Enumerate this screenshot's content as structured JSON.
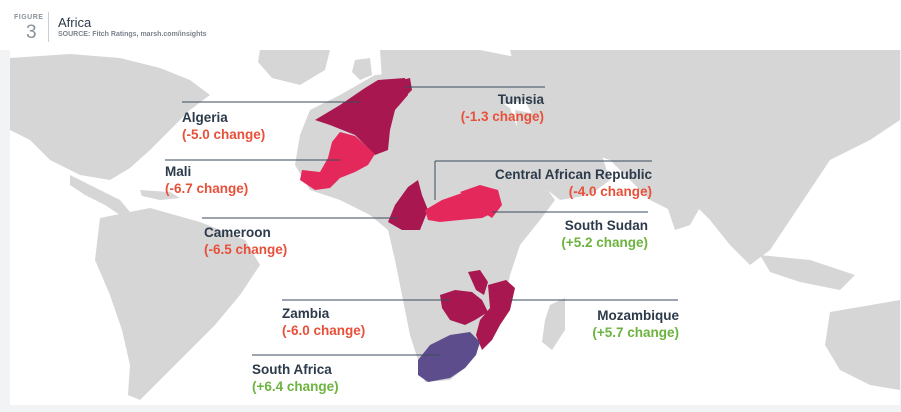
{
  "figure": {
    "label": "FIGURE",
    "number": "3"
  },
  "title": "Africa",
  "source": "SOURCE: Fitch Ratings, marsh.com/insights",
  "colors": {
    "land": "#d6d6d6",
    "highlight_dark": "#a8174f",
    "highlight_pink": "#e5285c",
    "highlight_purple": "#5d4d8c",
    "negative_text": "#e8503a",
    "positive_text": "#6cb33f",
    "leader_line": "#3a4b5e"
  },
  "countries": [
    {
      "key": "algeria",
      "name": "Algeria",
      "change": "(-5.0 change)",
      "direction": "negative"
    },
    {
      "key": "tunisia",
      "name": "Tunisia",
      "change": "(-1.3 change)",
      "direction": "negative"
    },
    {
      "key": "mali",
      "name": "Mali",
      "change": "(-6.7 change)",
      "direction": "negative"
    },
    {
      "key": "car",
      "name": "Central African Republic",
      "change": "(-4.0 change)",
      "direction": "negative"
    },
    {
      "key": "cameroon",
      "name": "Cameroon",
      "change": "(-6.5 change)",
      "direction": "negative"
    },
    {
      "key": "south_sudan",
      "name": "South Sudan",
      "change": "(+5.2 change)",
      "direction": "positive"
    },
    {
      "key": "zambia",
      "name": "Zambia",
      "change": "(-6.0 change)",
      "direction": "negative"
    },
    {
      "key": "mozambique",
      "name": "Mozambique",
      "change": "(+5.7 change)",
      "direction": "positive"
    },
    {
      "key": "south_africa",
      "name": "South Africa",
      "change": "(+6.4 change)",
      "direction": "positive"
    }
  ]
}
